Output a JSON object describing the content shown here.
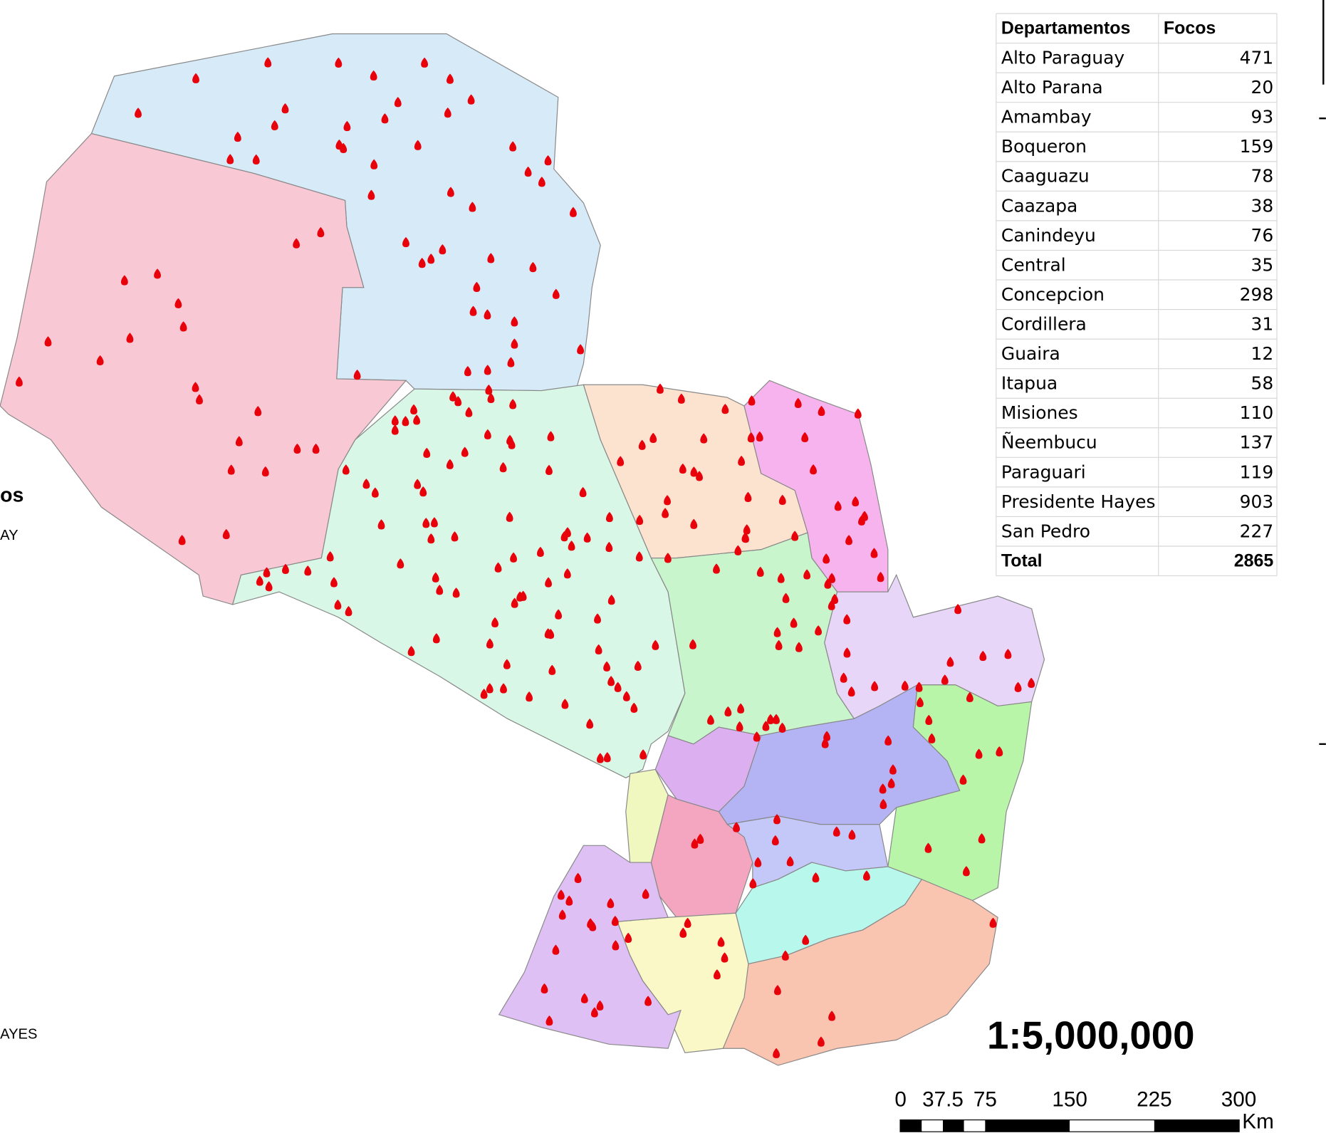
{
  "legend": {
    "title": "os",
    "items": [
      "AY",
      "AYES"
    ]
  },
  "table": {
    "header": [
      "Departamentos",
      "Focos"
    ],
    "rows": [
      [
        "Alto Paraguay",
        471
      ],
      [
        "Alto Parana",
        20
      ],
      [
        "Amambay",
        93
      ],
      [
        "Boqueron",
        159
      ],
      [
        "Caaguazu",
        78
      ],
      [
        "Caazapa",
        38
      ],
      [
        "Canindeyu",
        76
      ],
      [
        "Central",
        35
      ],
      [
        "Concepcion",
        298
      ],
      [
        "Cordillera",
        31
      ],
      [
        "Guaira",
        12
      ],
      [
        "Itapua",
        58
      ],
      [
        "Misiones",
        110
      ],
      [
        "Ñeembucu",
        137
      ],
      [
        "Paraguari",
        119
      ],
      [
        "Presidente Hayes",
        903
      ],
      [
        "San Pedro",
        227
      ]
    ],
    "total": [
      "Total",
      2865
    ]
  },
  "scale": {
    "ratio": "1:5,000,000",
    "ticks": [
      0,
      37.5,
      75,
      150,
      225,
      300
    ],
    "unit": "Km"
  }
}
